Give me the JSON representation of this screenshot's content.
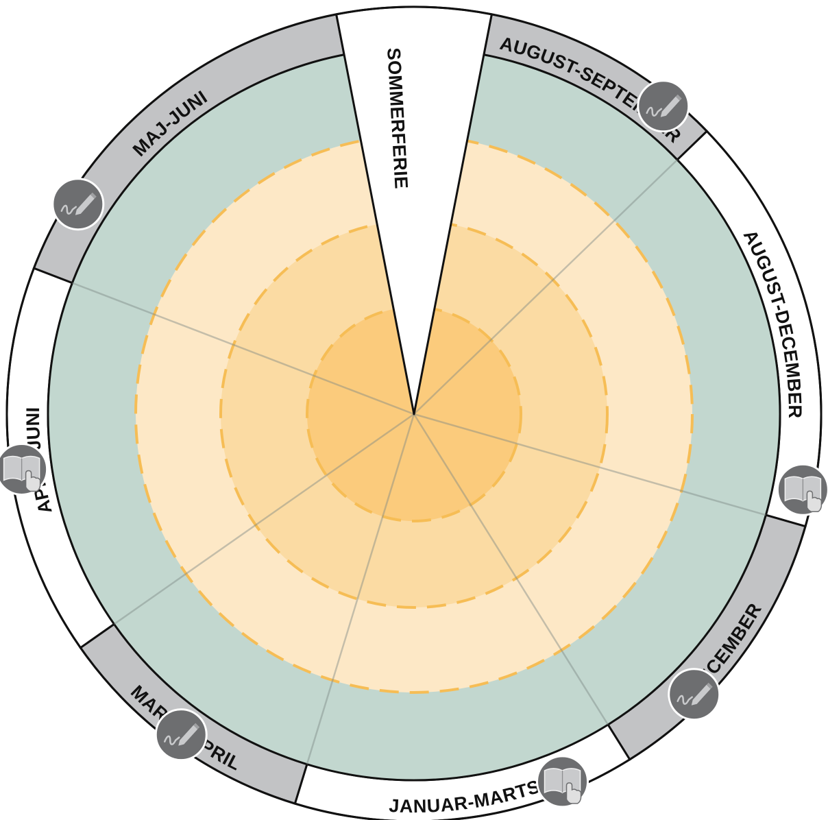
{
  "colors": {
    "ring_grey": "#c2c3c5",
    "ring_white": "#ffffff",
    "outline": "#111111",
    "green": "#c2d7cf",
    "pale_orange": "#fde8c6",
    "mid_orange": "#fbdba3",
    "core_orange": "#fbcb7c",
    "dash": "#f6bd55",
    "divider": "#7f8a86",
    "icon_bg": "#6d6e70",
    "icon_glyph": "#c9cacc"
  },
  "segments": [
    {
      "label": "AUGUST-SEPTEMBER",
      "from": 11,
      "to": 46,
      "fill": "grey"
    },
    {
      "label": "AUGUST-DECEMBER",
      "from": 46,
      "to": 106,
      "fill": "white"
    },
    {
      "label": "DECEMBER",
      "from": 106,
      "to": 148,
      "fill": "grey"
    },
    {
      "label": "JANUAR-MARTS",
      "from": 148,
      "to": 197,
      "fill": "white"
    },
    {
      "label": "MARTS-APRIL",
      "from": 197,
      "to": 235,
      "fill": "grey"
    },
    {
      "label": "APRIL-JUNI",
      "from": 235,
      "to": 291,
      "fill": "white"
    },
    {
      "label": "MAJ-JUNI",
      "from": 291,
      "to": 349,
      "fill": "grey"
    }
  ],
  "gap": {
    "label": "SOMMERFERIE",
    "from": 349,
    "to": 11
  },
  "dividers": [
    46,
    106,
    148,
    197,
    235,
    291
  ],
  "icons": [
    {
      "name": "pencil-icon",
      "angle": 39
    },
    {
      "name": "book-hand-icon",
      "angle": 101
    },
    {
      "name": "pencil-icon",
      "angle": 135
    },
    {
      "name": "book-hand-icon",
      "angle": 158
    },
    {
      "name": "pencil-icon",
      "angle": 216
    },
    {
      "name": "book-hand-icon",
      "angle": 262
    },
    {
      "name": "pencil-icon",
      "angle": 302
    }
  ]
}
